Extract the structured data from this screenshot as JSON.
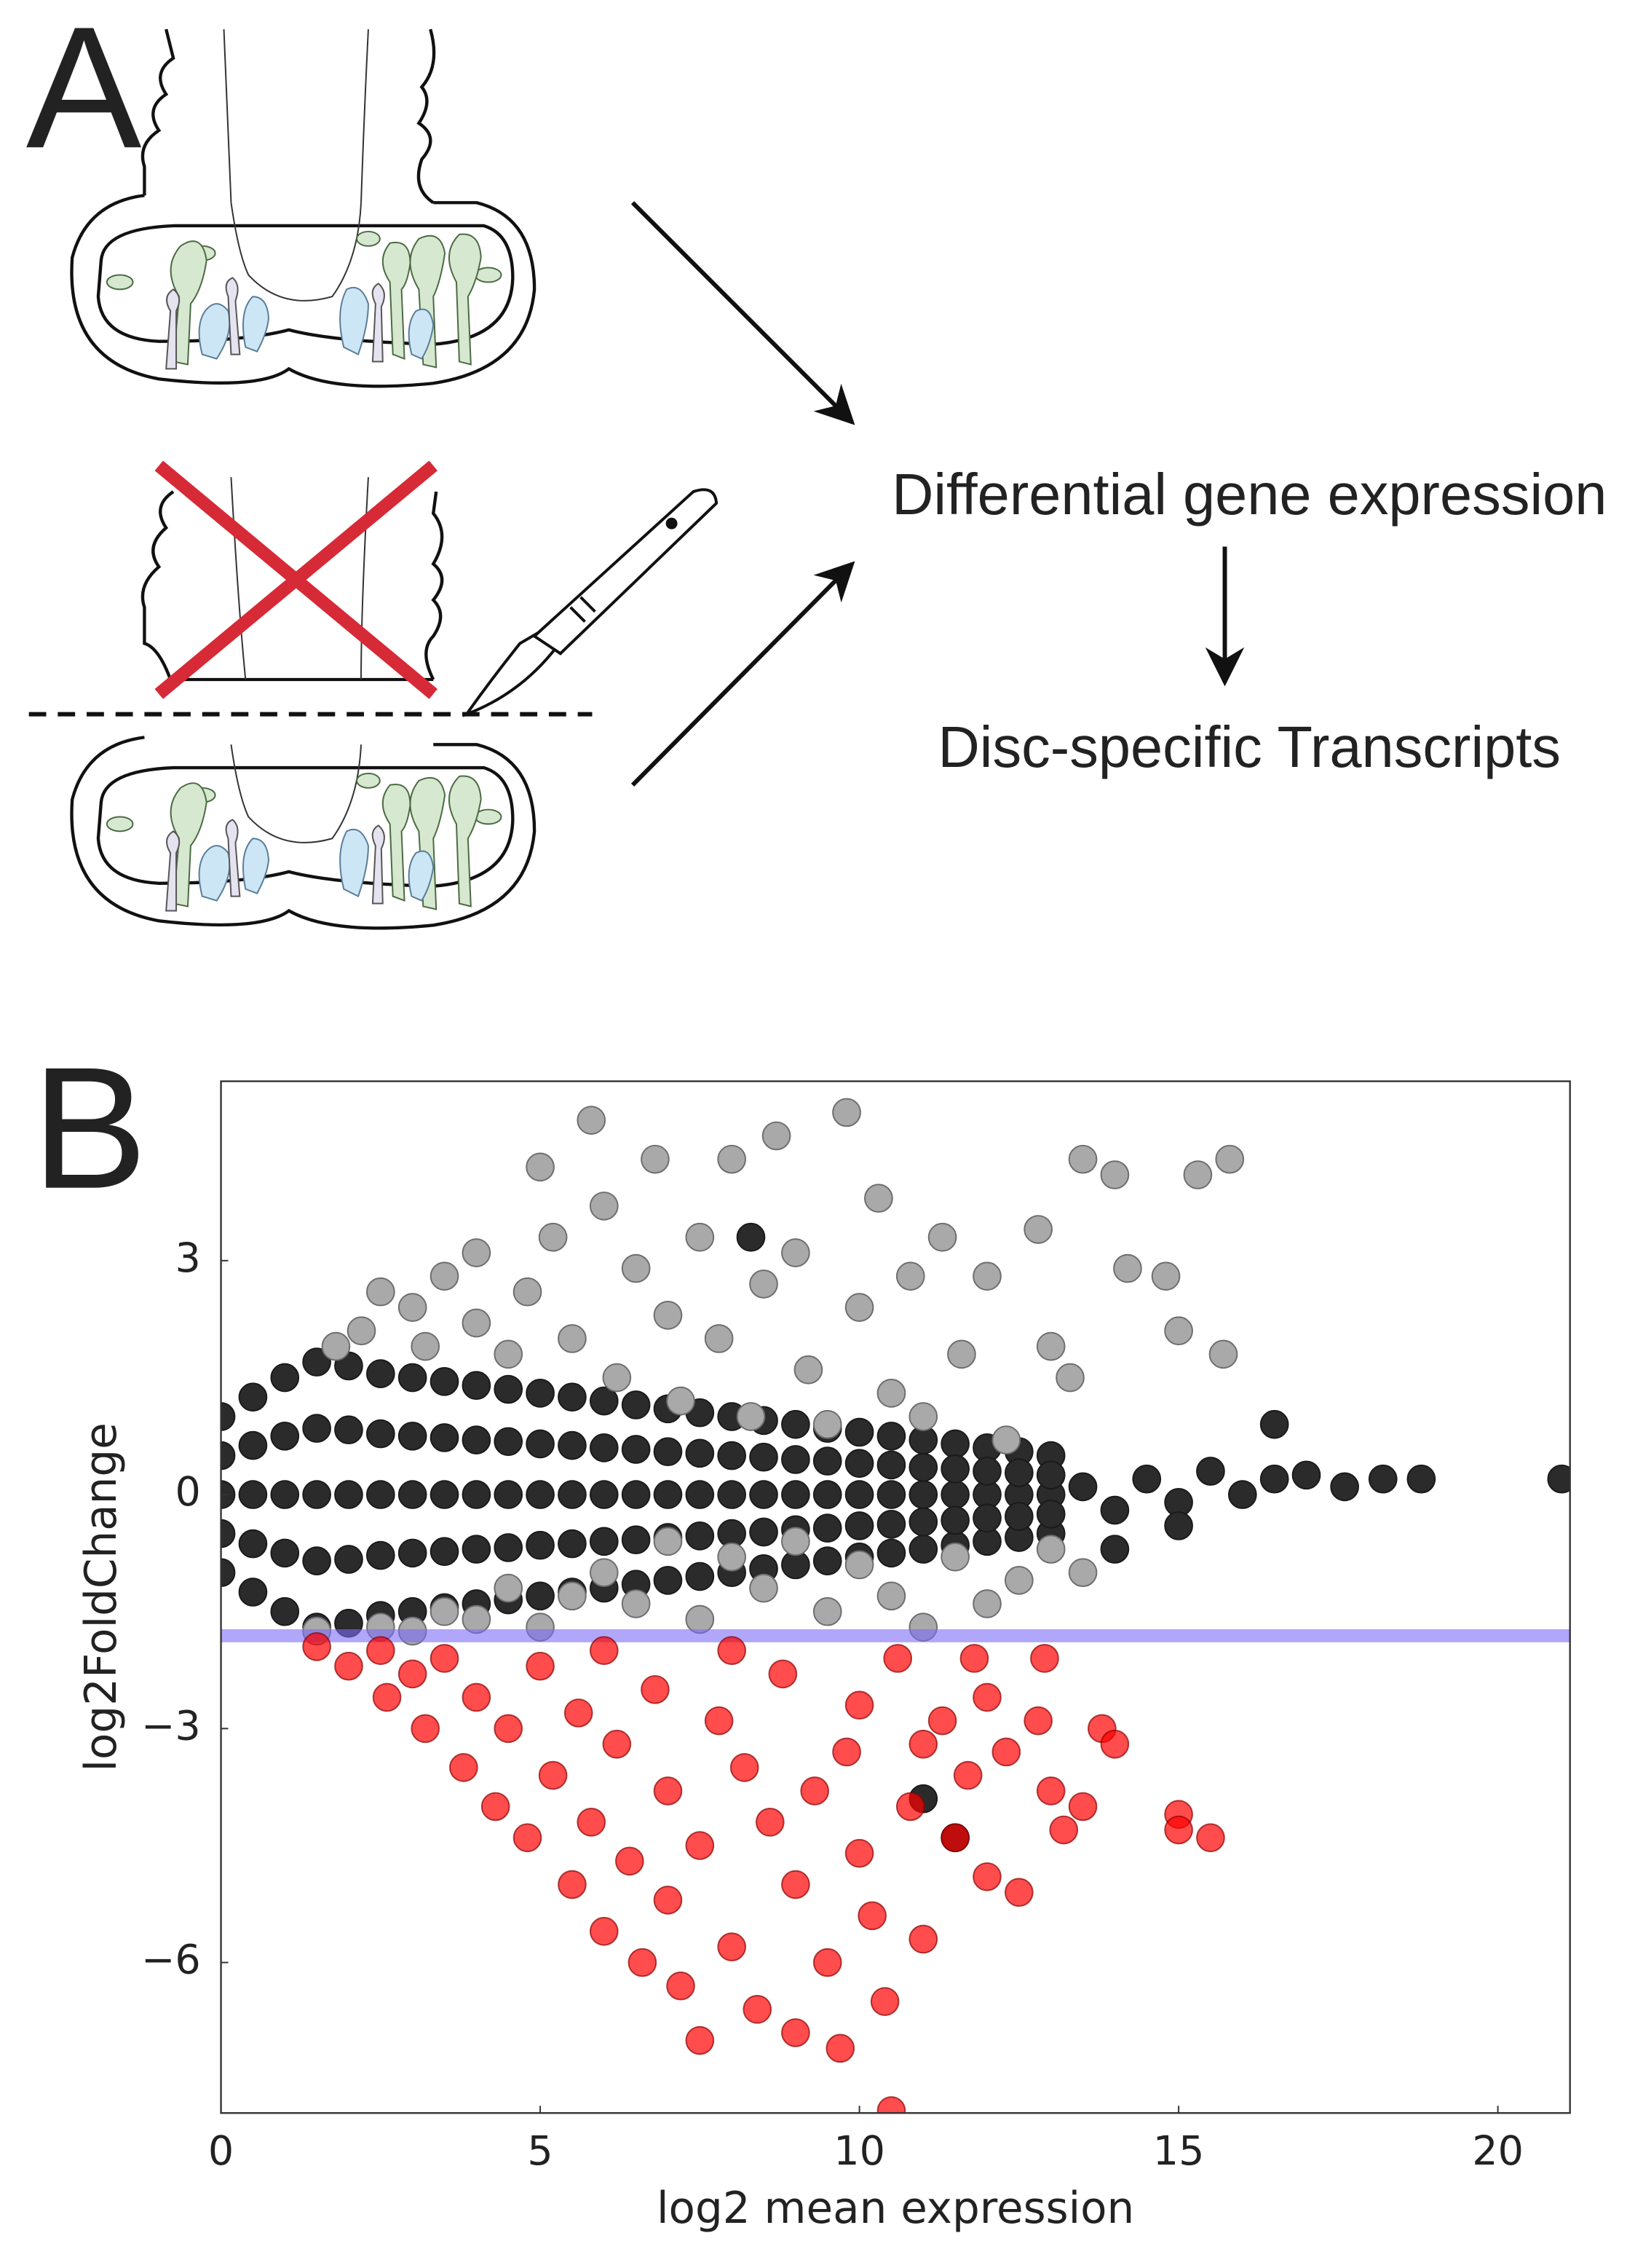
{
  "panel_a": {
    "label": "A",
    "steps": [
      "Differential gene expression",
      "Disc-specific Transcripts"
    ]
  },
  "panel_b": {
    "label": "B"
  },
  "chart_data": {
    "type": "scatter",
    "x_label": "log2 mean expression",
    "y_label": "log2FoldChange",
    "xlim": [
      0,
      21.13
    ],
    "ylim": [
      -7.93,
      5.3
    ],
    "xticks": [
      0,
      5,
      10,
      15,
      20
    ],
    "yticks": [
      {
        "value": -6,
        "label": "−6"
      },
      {
        "value": -3,
        "label": "−3"
      },
      0,
      3
    ],
    "threshold": {
      "value": -1.81,
      "color": "#7b6cf6"
    },
    "series": [
      {
        "color": "#2b2b2b",
        "edgecolor": "#1a1a1a",
        "alpha": 1,
        "points": [
          [
            0,
            0
          ],
          [
            0,
            1
          ],
          [
            0,
            -1
          ],
          [
            0,
            0.5
          ],
          [
            0,
            -0.5
          ],
          [
            0.5,
            0
          ],
          [
            0.5,
            1.25
          ],
          [
            0.5,
            -1.25
          ],
          [
            0.5,
            0.63
          ],
          [
            0.5,
            -0.63
          ],
          [
            1,
            0
          ],
          [
            1,
            1.5
          ],
          [
            1,
            -1.5
          ],
          [
            1,
            0.75
          ],
          [
            1,
            -0.75
          ],
          [
            1.5,
            0
          ],
          [
            1.5,
            1.7
          ],
          [
            1.5,
            -1.7
          ],
          [
            1.5,
            0.85
          ],
          [
            1.5,
            -0.85
          ],
          [
            2,
            0
          ],
          [
            2,
            1.65
          ],
          [
            2,
            -1.65
          ],
          [
            2,
            0.83
          ],
          [
            2,
            -0.83
          ],
          [
            2.5,
            0
          ],
          [
            2.5,
            1.55
          ],
          [
            2.5,
            -1.55
          ],
          [
            2.5,
            0.78
          ],
          [
            2.5,
            -0.78
          ],
          [
            3,
            0
          ],
          [
            3,
            1.5
          ],
          [
            3,
            -1.5
          ],
          [
            3,
            0.75
          ],
          [
            3,
            -0.75
          ],
          [
            3.5,
            0
          ],
          [
            3.5,
            1.45
          ],
          [
            3.5,
            -1.45
          ],
          [
            3.5,
            0.73
          ],
          [
            3.5,
            -0.73
          ],
          [
            4,
            0
          ],
          [
            4,
            1.4
          ],
          [
            4,
            -1.4
          ],
          [
            4,
            0.7
          ],
          [
            4,
            -0.7
          ],
          [
            4.5,
            0
          ],
          [
            4.5,
            1.35
          ],
          [
            4.5,
            -1.35
          ],
          [
            4.5,
            0.68
          ],
          [
            4.5,
            -0.68
          ],
          [
            5,
            0
          ],
          [
            5,
            1.3
          ],
          [
            5,
            -1.3
          ],
          [
            5,
            0.65
          ],
          [
            5,
            -0.65
          ],
          [
            5.5,
            0
          ],
          [
            5.5,
            1.25
          ],
          [
            5.5,
            -1.25
          ],
          [
            5.5,
            0.63
          ],
          [
            5.5,
            -0.63
          ],
          [
            6,
            0
          ],
          [
            6,
            1.2
          ],
          [
            6,
            -1.2
          ],
          [
            6,
            0.6
          ],
          [
            6,
            -0.6
          ],
          [
            6.5,
            0
          ],
          [
            6.5,
            1.15
          ],
          [
            6.5,
            -1.15
          ],
          [
            6.5,
            0.58
          ],
          [
            6.5,
            -0.58
          ],
          [
            7,
            0
          ],
          [
            7,
            1.1
          ],
          [
            7,
            -1.1
          ],
          [
            7,
            0.55
          ],
          [
            7,
            -0.55
          ],
          [
            7.5,
            0
          ],
          [
            7.5,
            1.05
          ],
          [
            7.5,
            -1.05
          ],
          [
            7.5,
            0.53
          ],
          [
            7.5,
            -0.53
          ],
          [
            8,
            0
          ],
          [
            8,
            1
          ],
          [
            8,
            -1
          ],
          [
            8,
            0.5
          ],
          [
            8,
            -0.5
          ],
          [
            8.5,
            0
          ],
          [
            8.5,
            0.95
          ],
          [
            8.5,
            -0.95
          ],
          [
            8.5,
            0.48
          ],
          [
            8.5,
            -0.48
          ],
          [
            9,
            0
          ],
          [
            9,
            0.9
          ],
          [
            9,
            -0.9
          ],
          [
            9,
            0.45
          ],
          [
            9,
            -0.45
          ],
          [
            9.5,
            0
          ],
          [
            9.5,
            0.85
          ],
          [
            9.5,
            -0.85
          ],
          [
            9.5,
            0.43
          ],
          [
            9.5,
            -0.43
          ],
          [
            10,
            0
          ],
          [
            10,
            0.8
          ],
          [
            10,
            -0.8
          ],
          [
            10,
            0.4
          ],
          [
            10,
            -0.4
          ],
          [
            10.5,
            0
          ],
          [
            10.5,
            0.75
          ],
          [
            10.5,
            -0.75
          ],
          [
            10.5,
            0.38
          ],
          [
            10.5,
            -0.38
          ],
          [
            11,
            0
          ],
          [
            11,
            0.7
          ],
          [
            11,
            -0.7
          ],
          [
            11,
            0.35
          ],
          [
            11,
            -0.35
          ],
          [
            11.5,
            0
          ],
          [
            11.5,
            0.65
          ],
          [
            11.5,
            -0.65
          ],
          [
            11.5,
            0.33
          ],
          [
            11.5,
            -0.33
          ],
          [
            12,
            0
          ],
          [
            12,
            0.6
          ],
          [
            12,
            -0.6
          ],
          [
            12,
            0.3
          ],
          [
            12,
            -0.3
          ],
          [
            12.5,
            0
          ],
          [
            12.5,
            0.55
          ],
          [
            12.5,
            -0.55
          ],
          [
            12.5,
            0.28
          ],
          [
            12.5,
            -0.28
          ],
          [
            13,
            0
          ],
          [
            13,
            0.5
          ],
          [
            13,
            -0.5
          ],
          [
            13,
            0.25
          ],
          [
            13,
            -0.25
          ],
          [
            13.5,
            0.1
          ],
          [
            14,
            -0.2
          ],
          [
            14.5,
            0.2
          ],
          [
            15,
            -0.1
          ],
          [
            15.5,
            0.3
          ],
          [
            16,
            0
          ],
          [
            16.5,
            0.9
          ],
          [
            16.5,
            0.2
          ],
          [
            17,
            0.25
          ],
          [
            17.6,
            0.1
          ],
          [
            18.2,
            0.2
          ],
          [
            18.8,
            0.2
          ],
          [
            21,
            0.2
          ],
          [
            14,
            -0.7
          ],
          [
            15,
            -0.4
          ],
          [
            11.5,
            -4.4
          ],
          [
            11,
            -3.9
          ],
          [
            8.3,
            3.3
          ]
        ]
      },
      {
        "color": "#a9a9a9",
        "edgecolor": "#6e6e6e",
        "alpha": 1,
        "points": [
          [
            1.8,
            1.9
          ],
          [
            2.2,
            2.1
          ],
          [
            2.5,
            2.6
          ],
          [
            3,
            2.4
          ],
          [
            3.2,
            1.9
          ],
          [
            3.5,
            2.8
          ],
          [
            4,
            2.2
          ],
          [
            4,
            3.1
          ],
          [
            4.5,
            1.8
          ],
          [
            4.8,
            2.6
          ],
          [
            5,
            4.2
          ],
          [
            5.2,
            3.3
          ],
          [
            5.5,
            2.0
          ],
          [
            5.8,
            4.8
          ],
          [
            6,
            3.7
          ],
          [
            6.2,
            1.5
          ],
          [
            6.5,
            2.9
          ],
          [
            6.8,
            4.3
          ],
          [
            7,
            2.3
          ],
          [
            7.2,
            1.2
          ],
          [
            7.5,
            3.3
          ],
          [
            7.8,
            2.0
          ],
          [
            8,
            4.3
          ],
          [
            8.3,
            1.0
          ],
          [
            8.5,
            2.7
          ],
          [
            8.7,
            4.6
          ],
          [
            9,
            3.1
          ],
          [
            9.2,
            1.6
          ],
          [
            9.5,
            0.9
          ],
          [
            9.8,
            4.9
          ],
          [
            10,
            2.4
          ],
          [
            10.3,
            3.8
          ],
          [
            10.5,
            1.3
          ],
          [
            10.8,
            2.8
          ],
          [
            11,
            1.0
          ],
          [
            11.3,
            3.3
          ],
          [
            11.6,
            1.8
          ],
          [
            12,
            2.8
          ],
          [
            12.3,
            0.7
          ],
          [
            12.8,
            3.4
          ],
          [
            13,
            1.9
          ],
          [
            13.5,
            4.3
          ],
          [
            14,
            4.1
          ],
          [
            14.2,
            2.9
          ],
          [
            15,
            2.1
          ],
          [
            15.3,
            4.1
          ],
          [
            15.7,
            1.8
          ],
          [
            15.8,
            4.3
          ],
          [
            14.8,
            2.8
          ],
          [
            13.3,
            1.5
          ],
          [
            1.5,
            -1.75
          ],
          [
            2.5,
            -1.7
          ],
          [
            3.5,
            -1.5
          ],
          [
            4.5,
            -1.2
          ],
          [
            5,
            -1.7
          ],
          [
            6,
            -1.0
          ],
          [
            6.5,
            -1.4
          ],
          [
            7,
            -0.6
          ],
          [
            7.5,
            -1.6
          ],
          [
            8,
            -0.8
          ],
          [
            8.5,
            -1.2
          ],
          [
            9,
            -0.6
          ],
          [
            9.5,
            -1.5
          ],
          [
            10,
            -0.9
          ],
          [
            10.5,
            -1.3
          ],
          [
            11,
            -1.7
          ],
          [
            11.5,
            -0.8
          ],
          [
            12,
            -1.4
          ],
          [
            12.5,
            -1.1
          ],
          [
            13,
            -0.7
          ],
          [
            13.5,
            -1.0
          ],
          [
            5.5,
            -1.3
          ],
          [
            4,
            -1.6
          ],
          [
            3,
            -1.75
          ]
        ]
      },
      {
        "color": "#ff0000",
        "edgecolor": "#8b0000",
        "alpha": 0.7,
        "points": [
          [
            1.5,
            -1.95
          ],
          [
            2,
            -2.2
          ],
          [
            2.5,
            -2.0
          ],
          [
            2.6,
            -2.6
          ],
          [
            3,
            -2.3
          ],
          [
            3.2,
            -3.0
          ],
          [
            3.5,
            -2.1
          ],
          [
            3.8,
            -3.5
          ],
          [
            4,
            -2.6
          ],
          [
            4.3,
            -4.0
          ],
          [
            4.5,
            -3.0
          ],
          [
            4.8,
            -4.4
          ],
          [
            5,
            -2.2
          ],
          [
            5.2,
            -3.6
          ],
          [
            5.5,
            -5.0
          ],
          [
            5.6,
            -2.8
          ],
          [
            5.8,
            -4.2
          ],
          [
            6,
            -5.6
          ],
          [
            6.2,
            -3.2
          ],
          [
            6.4,
            -4.7
          ],
          [
            6.6,
            -6.0
          ],
          [
            6.8,
            -2.5
          ],
          [
            7,
            -3.8
          ],
          [
            7,
            -5.2
          ],
          [
            7.2,
            -6.3
          ],
          [
            7.5,
            -7.0
          ],
          [
            7.5,
            -4.5
          ],
          [
            7.8,
            -2.9
          ],
          [
            8,
            -5.8
          ],
          [
            8.2,
            -3.5
          ],
          [
            8.4,
            -6.6
          ],
          [
            8.6,
            -4.2
          ],
          [
            8.8,
            -2.3
          ],
          [
            9,
            -5.0
          ],
          [
            9,
            -6.9
          ],
          [
            9.3,
            -3.8
          ],
          [
            9.5,
            -6.0
          ],
          [
            9.7,
            -7.1
          ],
          [
            10,
            -4.6
          ],
          [
            10,
            -2.7
          ],
          [
            10.2,
            -5.4
          ],
          [
            10.4,
            -6.5
          ],
          [
            10.5,
            -7.9
          ],
          [
            10.6,
            -2.1
          ],
          [
            10.8,
            -4.0
          ],
          [
            11,
            -3.2
          ],
          [
            11,
            -5.7
          ],
          [
            11.3,
            -2.9
          ],
          [
            11.5,
            -4.4
          ],
          [
            11.7,
            -3.6
          ],
          [
            12,
            -2.6
          ],
          [
            12,
            -4.9
          ],
          [
            12.3,
            -3.3
          ],
          [
            12.5,
            -5.1
          ],
          [
            12.8,
            -2.9
          ],
          [
            13,
            -3.8
          ],
          [
            13.2,
            -4.3
          ],
          [
            13.5,
            -4.0
          ],
          [
            13.8,
            -3.0
          ],
          [
            14,
            -3.2
          ],
          [
            15,
            -4.1
          ],
          [
            15,
            -4.3
          ],
          [
            15.5,
            -4.4
          ],
          [
            9.8,
            -3.3
          ],
          [
            8,
            -2.0
          ],
          [
            6,
            -2.0
          ],
          [
            11.8,
            -2.1
          ],
          [
            12.9,
            -2.1
          ]
        ]
      }
    ]
  }
}
